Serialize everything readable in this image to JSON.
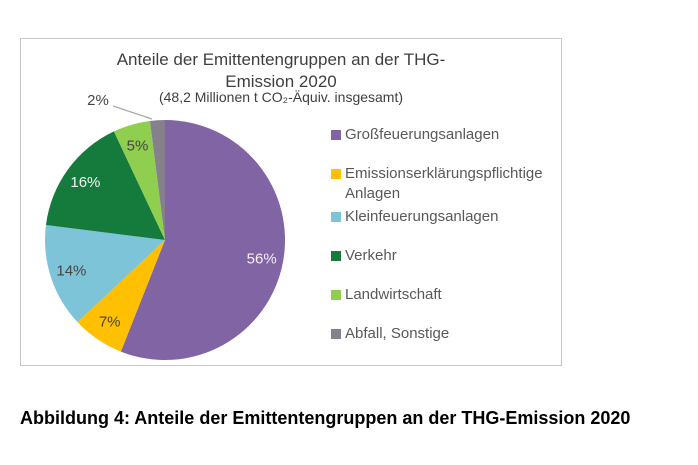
{
  "figure": {
    "title_line1": "Anteile der Emittentengruppen an der THG-",
    "title_line2": "Emission 2020",
    "subtitle": "(48,2 Millionen t CO₂-Äquiv. insgesamt)",
    "caption": "Abbildung 4: Anteile der Emittentengruppen an der THG-Emission 2020"
  },
  "chart_data": {
    "type": "pie",
    "title": "Anteile der Emittentengruppen an der THG-Emission 2020",
    "subtitle": "(48,2 Millionen t CO₂-Äquiv. insgesamt)",
    "unit": "%",
    "start_angle_deg": 0,
    "direction": "clockwise",
    "legend_position": "right",
    "grid": false,
    "slices": [
      {
        "label": "Großfeuerungsanlagen",
        "value": 56,
        "pct_label": "56%",
        "color": "#8164A3",
        "label_color": "#f3f0f8",
        "label_placement": "inside"
      },
      {
        "label": "Emissionserklärungspflichtige Anlagen",
        "value": 7,
        "pct_label": "7%",
        "color": "#FEC001",
        "label_color": "#454545",
        "label_placement": "inside"
      },
      {
        "label": "Kleinfeuerungsanlagen",
        "value": 14,
        "pct_label": "14%",
        "color": "#7EC4D9",
        "label_color": "#454545",
        "label_placement": "inside"
      },
      {
        "label": "Verkehr",
        "value": 16,
        "pct_label": "16%",
        "color": "#157B3D",
        "label_color": "#f5f5f5",
        "label_placement": "inside"
      },
      {
        "label": "Landwirtschaft",
        "value": 5,
        "pct_label": "5%",
        "color": "#90CE50",
        "label_color": "#454545",
        "label_placement": "inside"
      },
      {
        "label": "Abfall, Sonstige",
        "value": 2,
        "pct_label": "2%",
        "color": "#85808C",
        "label_color": "#454545",
        "label_placement": "outside",
        "outside_label": {
          "x": 77,
          "y": 66,
          "line": [
            [
              92,
              67
            ],
            [
              131,
              80
            ]
          ]
        }
      }
    ]
  }
}
